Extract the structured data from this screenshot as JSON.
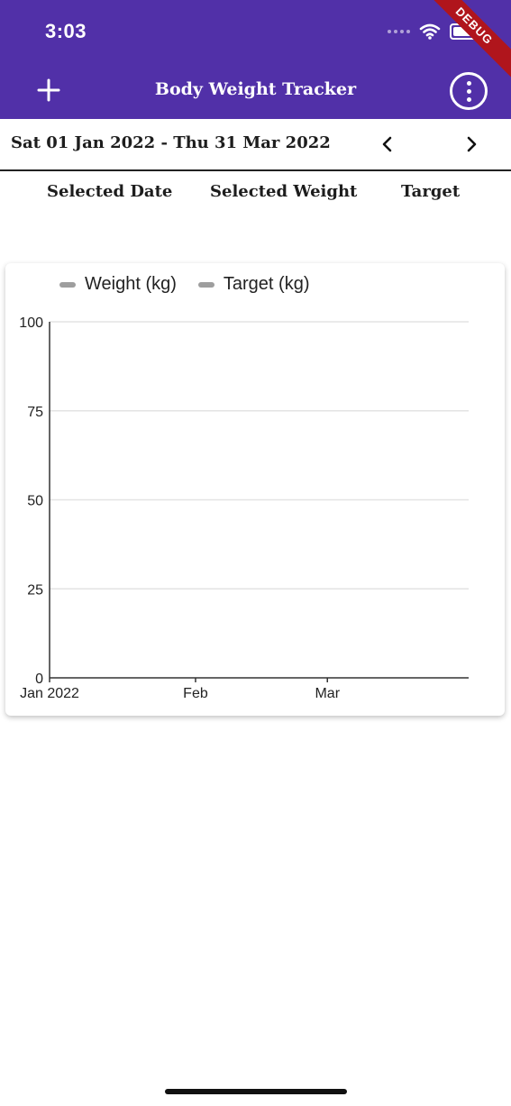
{
  "status": {
    "time": "3:03"
  },
  "appbar": {
    "title": "Body Weight Tracker",
    "ribbon": "DEBUG",
    "color": "#5130a8"
  },
  "range": {
    "label": "Sat 01 Jan 2022 - Thu 31 Mar 2022",
    "prev_icon": "chevron-left-icon",
    "next_icon": "chevron-right-icon"
  },
  "headers": [
    "Selected Date",
    "Selected Weight",
    "Target"
  ],
  "chart_data": {
    "type": "line",
    "series": [
      {
        "name": "Weight (kg)",
        "values": [],
        "color": "#9e9e9e"
      },
      {
        "name": "Target (kg)",
        "values": [],
        "color": "#9e9e9e"
      }
    ],
    "x_ticks": [
      "Jan 2022",
      "Feb",
      "Mar"
    ],
    "x_tick_dates": [
      "2022-01-01",
      "2022-02-01",
      "2022-03-01"
    ],
    "xlim": [
      "2022-01-01",
      "2022-03-31"
    ],
    "y_ticks": [
      "0",
      "25",
      "50",
      "75",
      "100"
    ],
    "ylim": [
      0,
      100
    ],
    "grid": true,
    "legend": "top"
  }
}
